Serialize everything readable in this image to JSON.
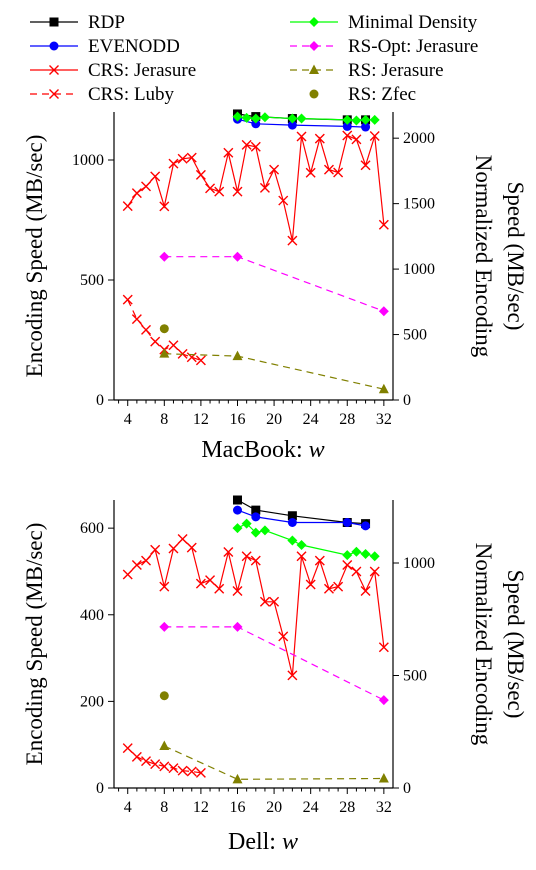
{
  "legend": [
    {
      "label": "RDP",
      "color": "#000000",
      "marker": "square",
      "dash": "solid"
    },
    {
      "label": "EVENODD",
      "color": "#0000ff",
      "marker": "circle",
      "dash": "solid"
    },
    {
      "label": "CRS: Jerasure",
      "color": "#ff0000",
      "marker": "x",
      "dash": "solid"
    },
    {
      "label": "CRS: Luby",
      "color": "#ff0000",
      "marker": "x",
      "dash": "dashed"
    },
    {
      "label": "Minimal Density",
      "color": "#00ff00",
      "marker": "diamond",
      "dash": "solid"
    },
    {
      "label": "RS-Opt: Jerasure",
      "color": "#ff00ff",
      "marker": "diamond",
      "dash": "dashed"
    },
    {
      "label": "RS: Jerasure",
      "color": "#808000",
      "marker": "triangle",
      "dash": "dashed"
    },
    {
      "label": "RS: Zfec",
      "color": "#808000",
      "marker": "circle",
      "dash": "none"
    }
  ],
  "chart_data": [
    {
      "type": "line",
      "xlabel_prefix": "MacBook:",
      "xlabel_var": "w",
      "ylabel": "Encoding Speed (MB/sec)",
      "y2label": "Normalized Encoding Speed (MB/sec)",
      "y2label_lines": [
        "Normalized Encoding",
        "Speed (MB/sec)"
      ],
      "xlim": [
        2.5,
        33
      ],
      "ylim": [
        0,
        1200
      ],
      "y2lim": [
        0,
        2200
      ],
      "xticks": [
        4,
        8,
        12,
        16,
        20,
        24,
        28,
        32
      ],
      "yticks": [
        0,
        500,
        1000
      ],
      "y2ticks": [
        0,
        500,
        1000,
        1500,
        2000
      ],
      "series": [
        {
          "name": "CRS: Jerasure",
          "axis": "left",
          "x": [
            4,
            5,
            6,
            7,
            8,
            9,
            10,
            11,
            12,
            13,
            14,
            15,
            16,
            17,
            18,
            19,
            20,
            21,
            22,
            23,
            24,
            25,
            26,
            27,
            28,
            29,
            30,
            31,
            32
          ],
          "y": [
            808,
            862,
            890,
            932,
            807,
            985,
            1005,
            1010,
            938,
            882,
            868,
            1030,
            868,
            1063,
            1055,
            884,
            960,
            831,
            664,
            1098,
            947,
            1089,
            960,
            948,
            1102,
            1086,
            978,
            1100,
            730
          ]
        },
        {
          "name": "CRS: Luby",
          "axis": "left",
          "x": [
            4,
            5,
            6,
            7,
            8,
            9,
            10,
            11,
            12
          ],
          "y": [
            418,
            337,
            292,
            243,
            210,
            228,
            192,
            178,
            165
          ]
        },
        {
          "name": "RS-Opt: Jerasure",
          "axis": "left",
          "x": [
            8,
            16,
            32
          ],
          "y": [
            597,
            597,
            370
          ]
        },
        {
          "name": "RS: Jerasure",
          "axis": "left",
          "x": [
            8,
            16,
            32
          ],
          "y": [
            193,
            183,
            45
          ]
        },
        {
          "name": "RS: Zfec",
          "axis": "left",
          "x": [
            8
          ],
          "y": [
            297
          ]
        },
        {
          "name": "RDP",
          "axis": "right",
          "x": [
            16,
            18,
            22,
            28,
            30
          ],
          "y": [
            2185,
            2165,
            2150,
            2140,
            2140
          ]
        },
        {
          "name": "EVENODD",
          "axis": "right",
          "x": [
            16,
            18,
            22,
            28,
            30
          ],
          "y": [
            2145,
            2110,
            2100,
            2090,
            2085
          ]
        },
        {
          "name": "Minimal Density",
          "axis": "right",
          "x": [
            16,
            17,
            18,
            19,
            22,
            23,
            28,
            29,
            30,
            31
          ],
          "y": [
            2165,
            2155,
            2150,
            2160,
            2150,
            2150,
            2140,
            2135,
            2140,
            2140
          ]
        }
      ]
    },
    {
      "type": "line",
      "xlabel_prefix": "Dell:",
      "xlabel_var": "w",
      "ylabel": "Encoding Speed (MB/sec)",
      "y2label": "Normalized Encoding Speed (MB/sec)",
      "y2label_lines": [
        "Normalized Encoding",
        "Speed (MB/sec)"
      ],
      "xlim": [
        2.5,
        33
      ],
      "ylim": [
        0,
        665
      ],
      "y2lim": [
        0,
        1280
      ],
      "xticks": [
        4,
        8,
        12,
        16,
        20,
        24,
        28,
        32
      ],
      "yticks": [
        0,
        200,
        400,
        600
      ],
      "y2ticks": [
        0,
        500,
        1000
      ],
      "series": [
        {
          "name": "CRS: Jerasure",
          "axis": "left",
          "x": [
            4,
            5,
            6,
            7,
            8,
            9,
            10,
            11,
            12,
            13,
            14,
            15,
            16,
            17,
            18,
            19,
            20,
            21,
            22,
            23,
            24,
            25,
            26,
            27,
            28,
            29,
            30,
            31,
            32
          ],
          "y": [
            493,
            515,
            525,
            550,
            465,
            553,
            575,
            555,
            472,
            480,
            460,
            545,
            455,
            535,
            525,
            430,
            430,
            350,
            260,
            535,
            470,
            525,
            460,
            465,
            515,
            500,
            455,
            500,
            325
          ]
        },
        {
          "name": "CRS: Luby",
          "axis": "left",
          "x": [
            4,
            5,
            6,
            7,
            8,
            9,
            10,
            11,
            12
          ],
          "y": [
            92,
            72,
            62,
            55,
            50,
            46,
            40,
            38,
            35
          ]
        },
        {
          "name": "RS-Opt: Jerasure",
          "axis": "left",
          "x": [
            8,
            16,
            32
          ],
          "y": [
            372,
            372,
            203
          ]
        },
        {
          "name": "RS: Jerasure",
          "axis": "left",
          "x": [
            8,
            16,
            32
          ],
          "y": [
            97,
            20,
            22
          ]
        },
        {
          "name": "RS: Zfec",
          "axis": "left",
          "x": [
            8
          ],
          "y": [
            213
          ]
        },
        {
          "name": "RDP",
          "axis": "right",
          "x": [
            16,
            18,
            22,
            28,
            30
          ],
          "y": [
            1280,
            1235,
            1210,
            1180,
            1175
          ]
        },
        {
          "name": "EVENODD",
          "axis": "right",
          "x": [
            16,
            18,
            22,
            28,
            30
          ],
          "y": [
            1235,
            1205,
            1180,
            1180,
            1165
          ]
        },
        {
          "name": "Minimal Density",
          "axis": "right",
          "x": [
            16,
            17,
            18,
            19,
            22,
            23,
            28,
            29,
            30,
            31
          ],
          "y": [
            1155,
            1175,
            1135,
            1145,
            1100,
            1080,
            1035,
            1050,
            1040,
            1030
          ]
        }
      ]
    }
  ]
}
